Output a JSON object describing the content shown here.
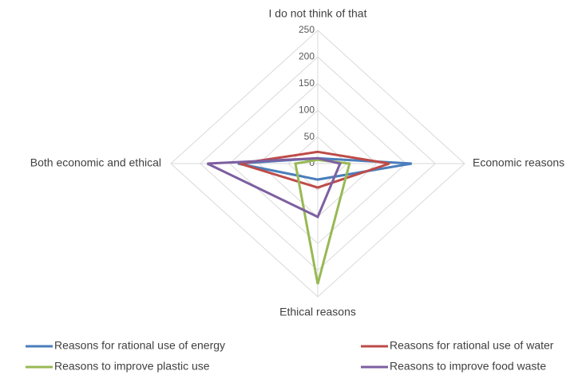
{
  "chart_data": {
    "type": "radar",
    "categories": [
      "I do not think of that",
      "Economic reasons",
      "Ethical reasons",
      "Both economic and ethical"
    ],
    "series": [
      {
        "name": "Reasons for rational use of energy",
        "color": "#4a7ebb",
        "values": [
          10,
          160,
          30,
          136
        ]
      },
      {
        "name": "Reasons for rational use of water",
        "color": "#be4b48",
        "values": [
          22,
          122,
          45,
          133
        ]
      },
      {
        "name": "Reasons to improve plastic use",
        "color": "#98b954",
        "values": [
          7,
          54,
          226,
          38
        ]
      },
      {
        "name": "Reasons to improve food waste",
        "color": "#7d5fa0",
        "values": [
          10,
          38,
          100,
          188
        ]
      }
    ],
    "ylim": [
      0,
      250
    ],
    "yticks": [
      0,
      50,
      100,
      150,
      200,
      250
    ],
    "grid": true
  }
}
